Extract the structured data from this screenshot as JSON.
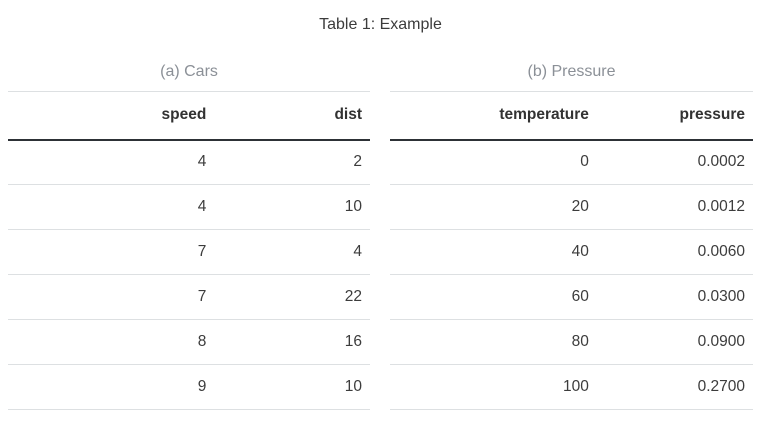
{
  "page": {
    "title": "Table 1: Example"
  },
  "tables": [
    {
      "caption": "(a) Cars",
      "columns": [
        "speed",
        "dist"
      ],
      "rows": [
        [
          "4",
          "2"
        ],
        [
          "4",
          "10"
        ],
        [
          "7",
          "4"
        ],
        [
          "7",
          "22"
        ],
        [
          "8",
          "16"
        ],
        [
          "9",
          "10"
        ]
      ]
    },
    {
      "caption": "(b) Pressure",
      "columns": [
        "temperature",
        "pressure"
      ],
      "rows": [
        [
          "0",
          "0.0002"
        ],
        [
          "20",
          "0.0012"
        ],
        [
          "40",
          "0.0060"
        ],
        [
          "60",
          "0.0300"
        ],
        [
          "80",
          "0.0900"
        ],
        [
          "100",
          "0.2700"
        ]
      ]
    }
  ],
  "colors": {
    "background": "#ffffff",
    "text": "#3c3c3c",
    "header_text": "#323232",
    "caption_gray": "#8b9097",
    "rule_light": "#dde0e2",
    "rule_dark": "#2d3136"
  }
}
